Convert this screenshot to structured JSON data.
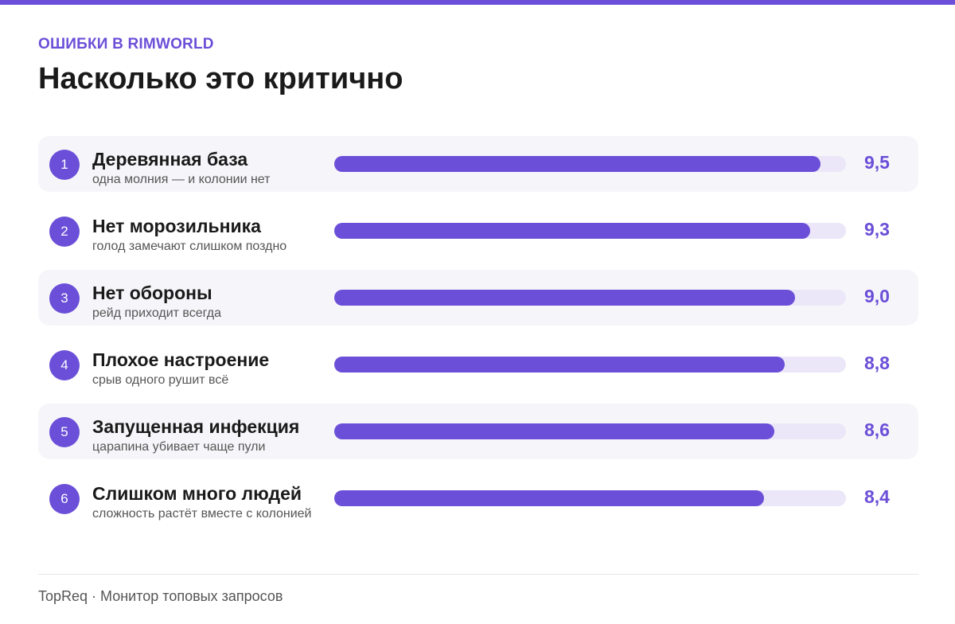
{
  "header": {
    "kicker": "ОШИБКИ В RIMWORLD",
    "title": "Насколько это критично"
  },
  "colors": {
    "accent": "#6b4fd8",
    "track": "#ebe7f8",
    "row_shade": "#f6f6fa"
  },
  "chart_data": {
    "type": "bar",
    "orientation": "horizontal",
    "title": "Насколько это критично",
    "xlim": [
      0,
      10
    ],
    "grid": false,
    "items": [
      {
        "rank": "1",
        "label": "Деревянная база",
        "note": "одна молния — и колонии нет",
        "value": 9.5,
        "value_label": "9,5"
      },
      {
        "rank": "2",
        "label": "Нет морозильника",
        "note": "голод замечают слишком поздно",
        "value": 9.3,
        "value_label": "9,3"
      },
      {
        "rank": "3",
        "label": "Нет обороны",
        "note": "рейд приходит всегда",
        "value": 9.0,
        "value_label": "9,0"
      },
      {
        "rank": "4",
        "label": "Плохое настроение",
        "note": "срыв одного рушит всё",
        "value": 8.8,
        "value_label": "8,8"
      },
      {
        "rank": "5",
        "label": "Запущенная инфекция",
        "note": "царапина убивает чаще пули",
        "value": 8.6,
        "value_label": "8,6"
      },
      {
        "rank": "6",
        "label": "Слишком много людей",
        "note": "сложность растёт вместе с колонией",
        "value": 8.4,
        "value_label": "8,4"
      }
    ]
  },
  "footer": {
    "text": "TopReq · Монитор топовых запросов"
  }
}
